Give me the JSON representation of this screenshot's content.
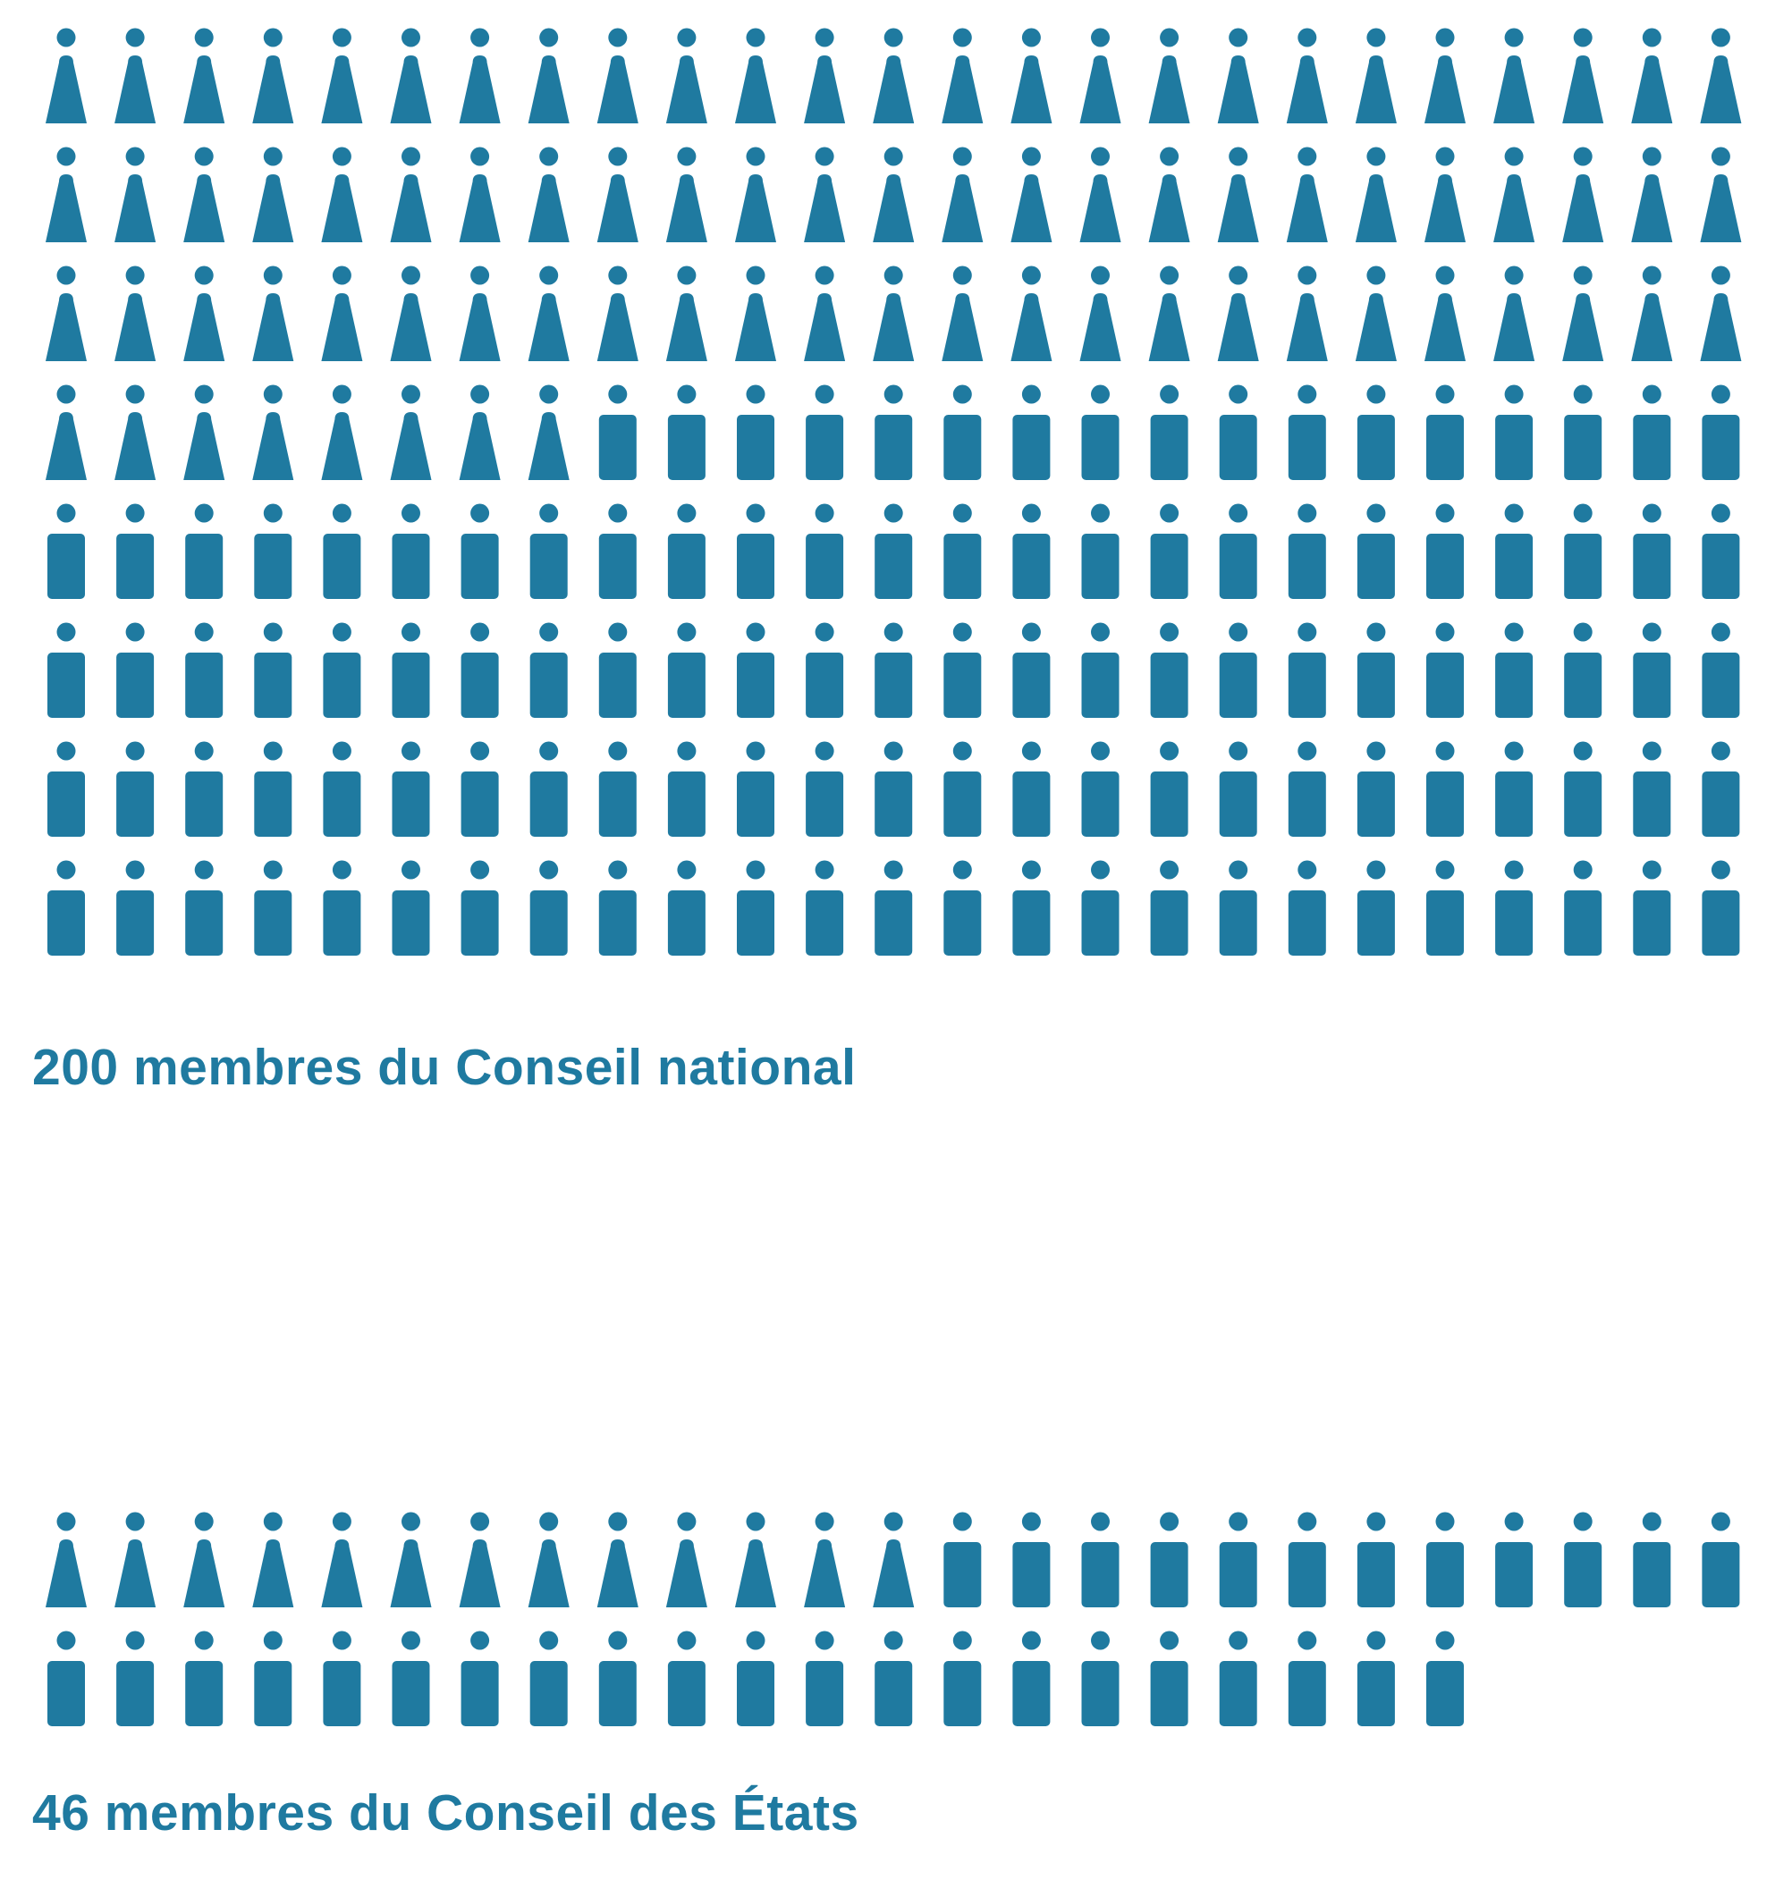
{
  "colors": {
    "icon": "#1f7aa0",
    "text": "#1f7aa0",
    "background": "#ffffff"
  },
  "chart_data": [
    {
      "type": "pictogram",
      "caption": "200 membres du Conseil national",
      "total": 200,
      "icons_per_row": 25,
      "series": [
        {
          "icon": "female-person-icon",
          "count": 83
        },
        {
          "icon": "male-person-icon",
          "count": 117
        }
      ]
    },
    {
      "type": "pictogram",
      "caption": "46 membres du Conseil des États",
      "total": 46,
      "icons_per_row": 25,
      "series": [
        {
          "icon": "female-person-icon",
          "count": 13
        },
        {
          "icon": "male-person-icon",
          "count": 33
        }
      ]
    }
  ]
}
